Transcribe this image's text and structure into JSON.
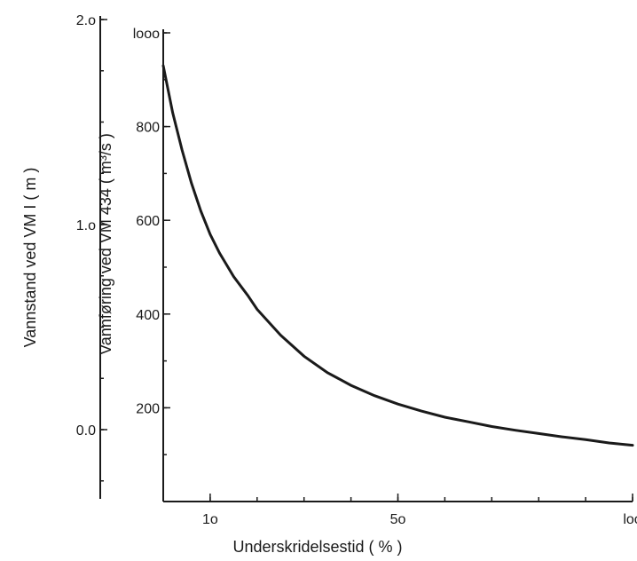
{
  "chart_data": {
    "type": "line",
    "title": "",
    "xlabel": "Underskridelsestid ( % )",
    "ylabel_left": "Vannstand ved VM I ( m )",
    "ylabel_right": "Vannføring ved VM 434 ( m³/s )",
    "x_ticks": [
      {
        "value": 10,
        "label": "1o"
      },
      {
        "value": 50,
        "label": "5o"
      },
      {
        "value": 100,
        "label": "loo"
      }
    ],
    "y_ticks_discharge": [
      {
        "value": 1000,
        "label": "looo"
      },
      {
        "value": 800,
        "label": "800"
      },
      {
        "value": 600,
        "label": "600"
      },
      {
        "value": 400,
        "label": "400"
      },
      {
        "value": 200,
        "label": "200"
      }
    ],
    "y_ticks_stage": [
      {
        "value": 2.0,
        "label": "2.o"
      },
      {
        "value": 1.0,
        "label": "1.o"
      },
      {
        "value": 0.0,
        "label": "0.0"
      }
    ],
    "xlim": [
      0,
      100
    ],
    "ylim_discharge": [
      0,
      1000
    ],
    "ylim_stage": [
      -0.5,
      2.0
    ],
    "grid": false,
    "series": [
      {
        "x": [
          0,
          1,
          2,
          3,
          4,
          6,
          8,
          10,
          12,
          15,
          18,
          20,
          25,
          30,
          35,
          40,
          45,
          50,
          55,
          60,
          65,
          70,
          75,
          80,
          85,
          90,
          95,
          100
        ],
        "y": [
          930,
          880,
          830,
          790,
          750,
          680,
          620,
          570,
          530,
          480,
          440,
          410,
          355,
          310,
          275,
          248,
          226,
          208,
          193,
          180,
          170,
          160,
          152,
          145,
          138,
          132,
          125,
          120
        ]
      }
    ]
  }
}
